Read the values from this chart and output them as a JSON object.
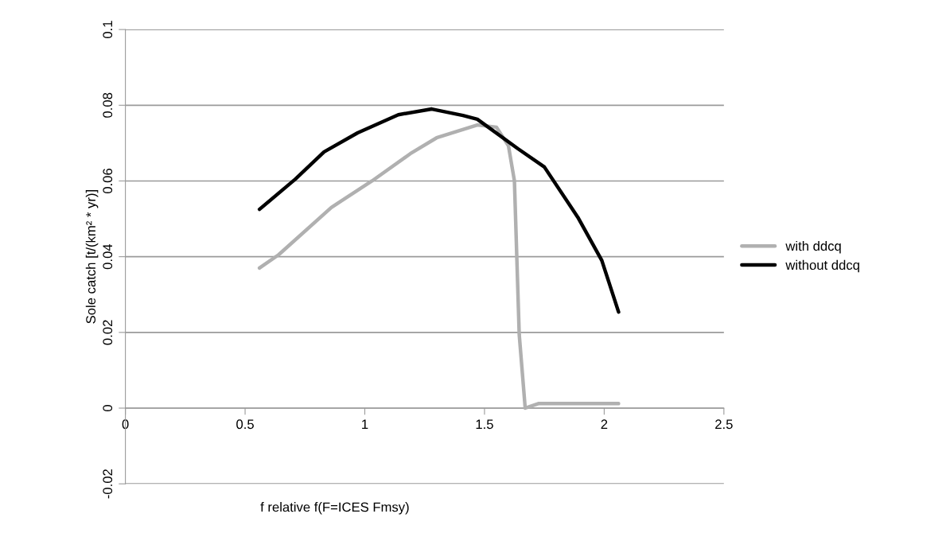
{
  "chart_data": {
    "type": "line",
    "xlabel": "f relative f(F=ICES Fmsy)",
    "ylabel": "Sole catch [t/(km² * yr)]",
    "xlim": [
      0,
      2.5
    ],
    "xticks": [
      0,
      0.5,
      1,
      1.5,
      2,
      2.5
    ],
    "ylim": [
      -0.02,
      0.1
    ],
    "yticks": [
      -0.02,
      0,
      0.02,
      0.04,
      0.06,
      0.08,
      0.1
    ],
    "grid": "y",
    "legend": "right",
    "marker": "none",
    "line_style": "solid",
    "series": [
      {
        "name": "with ddcq",
        "color": "#b0b0b0",
        "x": [
          0.56,
          0.64,
          0.86,
          1.03,
          1.19,
          1.3,
          1.47,
          1.55,
          1.6,
          1.625,
          1.645,
          1.67,
          1.725,
          2.06
        ],
        "values": [
          0.037,
          0.0405,
          0.053,
          0.06,
          0.0672,
          0.0714,
          0.0748,
          0.0742,
          0.0693,
          0.06,
          0.0195,
          0.0,
          0.0012,
          0.0012
        ]
      },
      {
        "name": "without ddcq",
        "color": "#000000",
        "x": [
          0.56,
          0.71,
          0.83,
          0.97,
          1.14,
          1.28,
          1.41,
          1.47,
          1.64,
          1.75,
          1.89,
          1.99,
          2.06
        ],
        "values": [
          0.0525,
          0.0605,
          0.0677,
          0.0727,
          0.0775,
          0.079,
          0.0773,
          0.0763,
          0.0685,
          0.0637,
          0.0504,
          0.039,
          0.0254
        ]
      }
    ]
  }
}
